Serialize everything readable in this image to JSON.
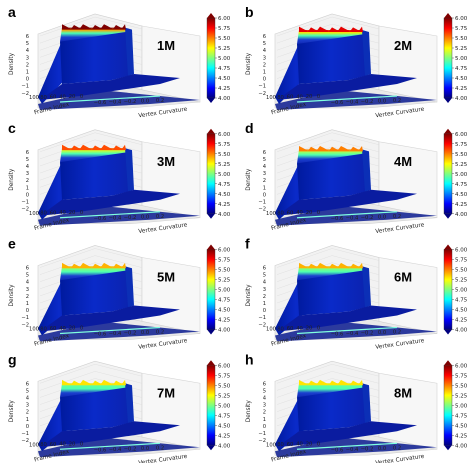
{
  "chart_data": [
    {
      "panel": "a",
      "label": "1M",
      "type": "surface3d",
      "zlabel": "Density",
      "xlabel": "Vertex Curvature",
      "ylabel": "Frame Index",
      "zticks": [
        "6",
        "5",
        "4",
        "3",
        "2",
        "1",
        "0",
        "−1",
        "−2"
      ],
      "xticks": [
        "−0.6",
        "−0.4",
        "−0.2",
        "0.0",
        "0.2"
      ],
      "yticks": [
        "100",
        "80",
        "60",
        "40",
        "20",
        "0"
      ],
      "colorbar_ticks": [
        "6.00",
        "5.75",
        "5.50",
        "5.25",
        "5.00",
        "4.75",
        "4.50",
        "4.25",
        "4.00"
      ],
      "zlim": [
        -2,
        6
      ],
      "clim": [
        4,
        6
      ],
      "peak_density": 6.0
    },
    {
      "panel": "b",
      "label": "2M",
      "type": "surface3d",
      "zlabel": "Density",
      "xlabel": "Vertex Curvature",
      "ylabel": "Frame Index",
      "zticks": [
        "6",
        "5",
        "4",
        "3",
        "2",
        "1",
        "0",
        "−1",
        "−2"
      ],
      "xticks": [
        "−0.6",
        "−0.4",
        "−0.2",
        "0.0",
        "0.2"
      ],
      "yticks": [
        "100",
        "80",
        "60",
        "40",
        "20",
        "0"
      ],
      "colorbar_ticks": [
        "6.00",
        "5.75",
        "5.50",
        "5.25",
        "5.00",
        "4.75",
        "4.50",
        "4.25",
        "4.00"
      ],
      "zlim": [
        -2,
        6
      ],
      "clim": [
        4,
        6
      ],
      "peak_density": 5.8
    },
    {
      "panel": "c",
      "label": "3M",
      "type": "surface3d",
      "zlabel": "Density",
      "xlabel": "Vertex Curvature",
      "ylabel": "Frame Index",
      "zticks": [
        "6",
        "5",
        "4",
        "3",
        "2",
        "1",
        "0",
        "−1",
        "−2"
      ],
      "xticks": [
        "−0.6",
        "−0.4",
        "−0.2",
        "0.0",
        "0.2"
      ],
      "yticks": [
        "100",
        "80",
        "60",
        "40",
        "20",
        "0"
      ],
      "colorbar_ticks": [
        "6.00",
        "5.75",
        "5.50",
        "5.25",
        "5.00",
        "4.75",
        "4.50",
        "4.25",
        "4.00"
      ],
      "zlim": [
        -2,
        6
      ],
      "clim": [
        4,
        6
      ],
      "peak_density": 5.6
    },
    {
      "panel": "d",
      "label": "4M",
      "type": "surface3d",
      "zlabel": "Density",
      "xlabel": "Vertex Curvature",
      "ylabel": "Frame Index",
      "zticks": [
        "6",
        "5",
        "4",
        "3",
        "2",
        "1",
        "0",
        "−1",
        "−2"
      ],
      "xticks": [
        "−0.6",
        "−0.4",
        "−0.2",
        "0.0",
        "0.2"
      ],
      "yticks": [
        "100",
        "80",
        "60",
        "40",
        "20",
        "0"
      ],
      "colorbar_ticks": [
        "6.00",
        "5.75",
        "5.50",
        "5.25",
        "5.00",
        "4.75",
        "4.50",
        "4.25",
        "4.00"
      ],
      "zlim": [
        -2,
        6
      ],
      "clim": [
        4,
        6
      ],
      "peak_density": 5.5
    },
    {
      "panel": "e",
      "label": "5M",
      "type": "surface3d",
      "zlabel": "Density",
      "xlabel": "Vertex Curvature",
      "ylabel": "Frame Index",
      "zticks": [
        "6",
        "5",
        "4",
        "3",
        "2",
        "1",
        "0",
        "−1",
        "−2"
      ],
      "xticks": [
        "−0.6",
        "−0.4",
        "−0.2",
        "0.0",
        "0.2"
      ],
      "yticks": [
        "100",
        "80",
        "60",
        "40",
        "20",
        "0"
      ],
      "colorbar_ticks": [
        "6.00",
        "5.75",
        "5.50",
        "5.25",
        "5.00",
        "4.75",
        "4.50",
        "4.25",
        "4.00"
      ],
      "zlim": [
        -2,
        6
      ],
      "clim": [
        4,
        6
      ],
      "peak_density": 5.4
    },
    {
      "panel": "f",
      "label": "6M",
      "type": "surface3d",
      "zlabel": "Density",
      "xlabel": "Vertex Curvature",
      "ylabel": "Frame Index",
      "zticks": [
        "6",
        "5",
        "4",
        "3",
        "2",
        "1",
        "0",
        "−1",
        "−2"
      ],
      "xticks": [
        "−0.6",
        "−0.4",
        "−0.2",
        "0.0",
        "0.2"
      ],
      "yticks": [
        "100",
        "80",
        "60",
        "40",
        "20",
        "0"
      ],
      "colorbar_ticks": [
        "6.00",
        "5.75",
        "5.50",
        "5.25",
        "5.00",
        "4.75",
        "4.50",
        "4.25",
        "4.00"
      ],
      "zlim": [
        -2,
        6
      ],
      "clim": [
        4,
        6
      ],
      "peak_density": 5.4
    },
    {
      "panel": "g",
      "label": "7M",
      "type": "surface3d",
      "zlabel": "Density",
      "xlabel": "Vertex Curvature",
      "ylabel": "Frame Index",
      "zticks": [
        "6",
        "5",
        "4",
        "3",
        "2",
        "1",
        "0",
        "−1",
        "−2"
      ],
      "xticks": [
        "−0.6",
        "−0.4",
        "−0.2",
        "0.0",
        "0.2"
      ],
      "yticks": [
        "100",
        "80",
        "60",
        "40",
        "20",
        "0"
      ],
      "colorbar_ticks": [
        "6.00",
        "5.75",
        "5.50",
        "5.25",
        "5.00",
        "4.75",
        "4.50",
        "4.25",
        "4.00"
      ],
      "zlim": [
        -2,
        6
      ],
      "clim": [
        4,
        6
      ],
      "peak_density": 5.3
    },
    {
      "panel": "h",
      "label": "8M",
      "type": "surface3d",
      "zlabel": "Density",
      "xlabel": "Vertex Curvature",
      "ylabel": "Frame Index",
      "zticks": [
        "6",
        "5",
        "4",
        "3",
        "2",
        "1",
        "0",
        "−1",
        "−2"
      ],
      "xticks": [
        "−0.6",
        "−0.4",
        "−0.2",
        "0.0",
        "0.2"
      ],
      "yticks": [
        "100",
        "80",
        "60",
        "40",
        "20",
        "0"
      ],
      "colorbar_ticks": [
        "6.00",
        "5.75",
        "5.50",
        "5.25",
        "5.00",
        "4.75",
        "4.50",
        "4.25",
        "4.00"
      ],
      "zlim": [
        -2,
        6
      ],
      "clim": [
        4,
        6
      ],
      "peak_density": 5.3
    }
  ],
  "colormap": [
    "#00007f",
    "#0000ff",
    "#007fff",
    "#00ffff",
    "#7fff7f",
    "#ffff00",
    "#ff7f00",
    "#ff0000",
    "#7f0000"
  ]
}
